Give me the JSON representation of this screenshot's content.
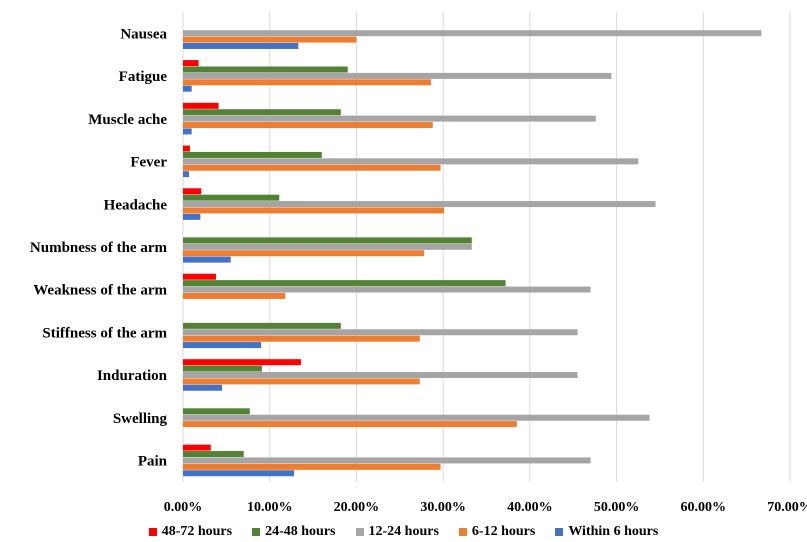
{
  "chart_data": {
    "type": "bar",
    "orientation": "horizontal",
    "title": "",
    "xlabel": "",
    "ylabel": "",
    "xlim": [
      0,
      0.7
    ],
    "x_ticks": [
      "0.00%",
      "10.00%",
      "20.00%",
      "30.00%",
      "40.00%",
      "50.00%",
      "60.00%",
      "70.00%"
    ],
    "grid": "vertical",
    "legend_position": "bottom",
    "categories": [
      "Nausea",
      "Fatigue",
      "Muscle ache",
      "Fever",
      "Headache",
      "Numbness of the arm",
      "Weakness of the arm",
      "Stiffness of the arm",
      "Induration",
      "Swelling",
      "Pain"
    ],
    "series": [
      {
        "name": "48-72 hours",
        "color": "#ff0000",
        "values": [
          0,
          0.018,
          0.041,
          0.008,
          0.021,
          0,
          0.038,
          0,
          0.136,
          0,
          0.032
        ]
      },
      {
        "name": "24-48 hours",
        "color": "#548235",
        "values": [
          0,
          0.19,
          0.182,
          0.16,
          0.111,
          0.333,
          0.372,
          0.182,
          0.091,
          0.077,
          0.07
        ]
      },
      {
        "name": "12-24 hours",
        "color": "#a5a5a5",
        "values": [
          0.667,
          0.494,
          0.476,
          0.525,
          0.545,
          0.333,
          0.47,
          0.455,
          0.455,
          0.538,
          0.47
        ]
      },
      {
        "name": "6-12 hours",
        "color": "#ed7d31",
        "values": [
          0.2,
          0.286,
          0.288,
          0.297,
          0.301,
          0.278,
          0.118,
          0.273,
          0.273,
          0.385,
          0.297
        ]
      },
      {
        "name": "Within 6 hours",
        "color": "#4472c4",
        "values": [
          0.133,
          0.01,
          0.01,
          0.007,
          0.02,
          0.055,
          0,
          0.09,
          0.045,
          0,
          0.128
        ]
      }
    ]
  }
}
